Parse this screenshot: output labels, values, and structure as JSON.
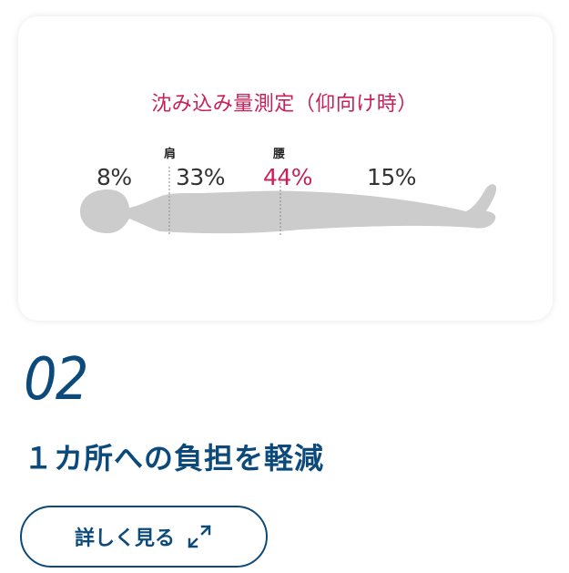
{
  "card": {
    "title": "沈み込み量測定（仰向け時）",
    "labels": {
      "shoulder": "肩",
      "waist": "腰"
    },
    "percentages": [
      {
        "value": "8%",
        "highlight": false
      },
      {
        "value": "33%",
        "highlight": false
      },
      {
        "value": "44%",
        "highlight": true
      },
      {
        "value": "15%",
        "highlight": false
      }
    ]
  },
  "feature": {
    "number": "02",
    "heading": "１カ所への負担を軽減"
  },
  "button": {
    "label": "詳しく見る",
    "icon": "expand-arrows-icon"
  },
  "colors": {
    "accent": "#c8215a",
    "navy": "#0c4a7c",
    "silhouette": "#cccccc"
  }
}
